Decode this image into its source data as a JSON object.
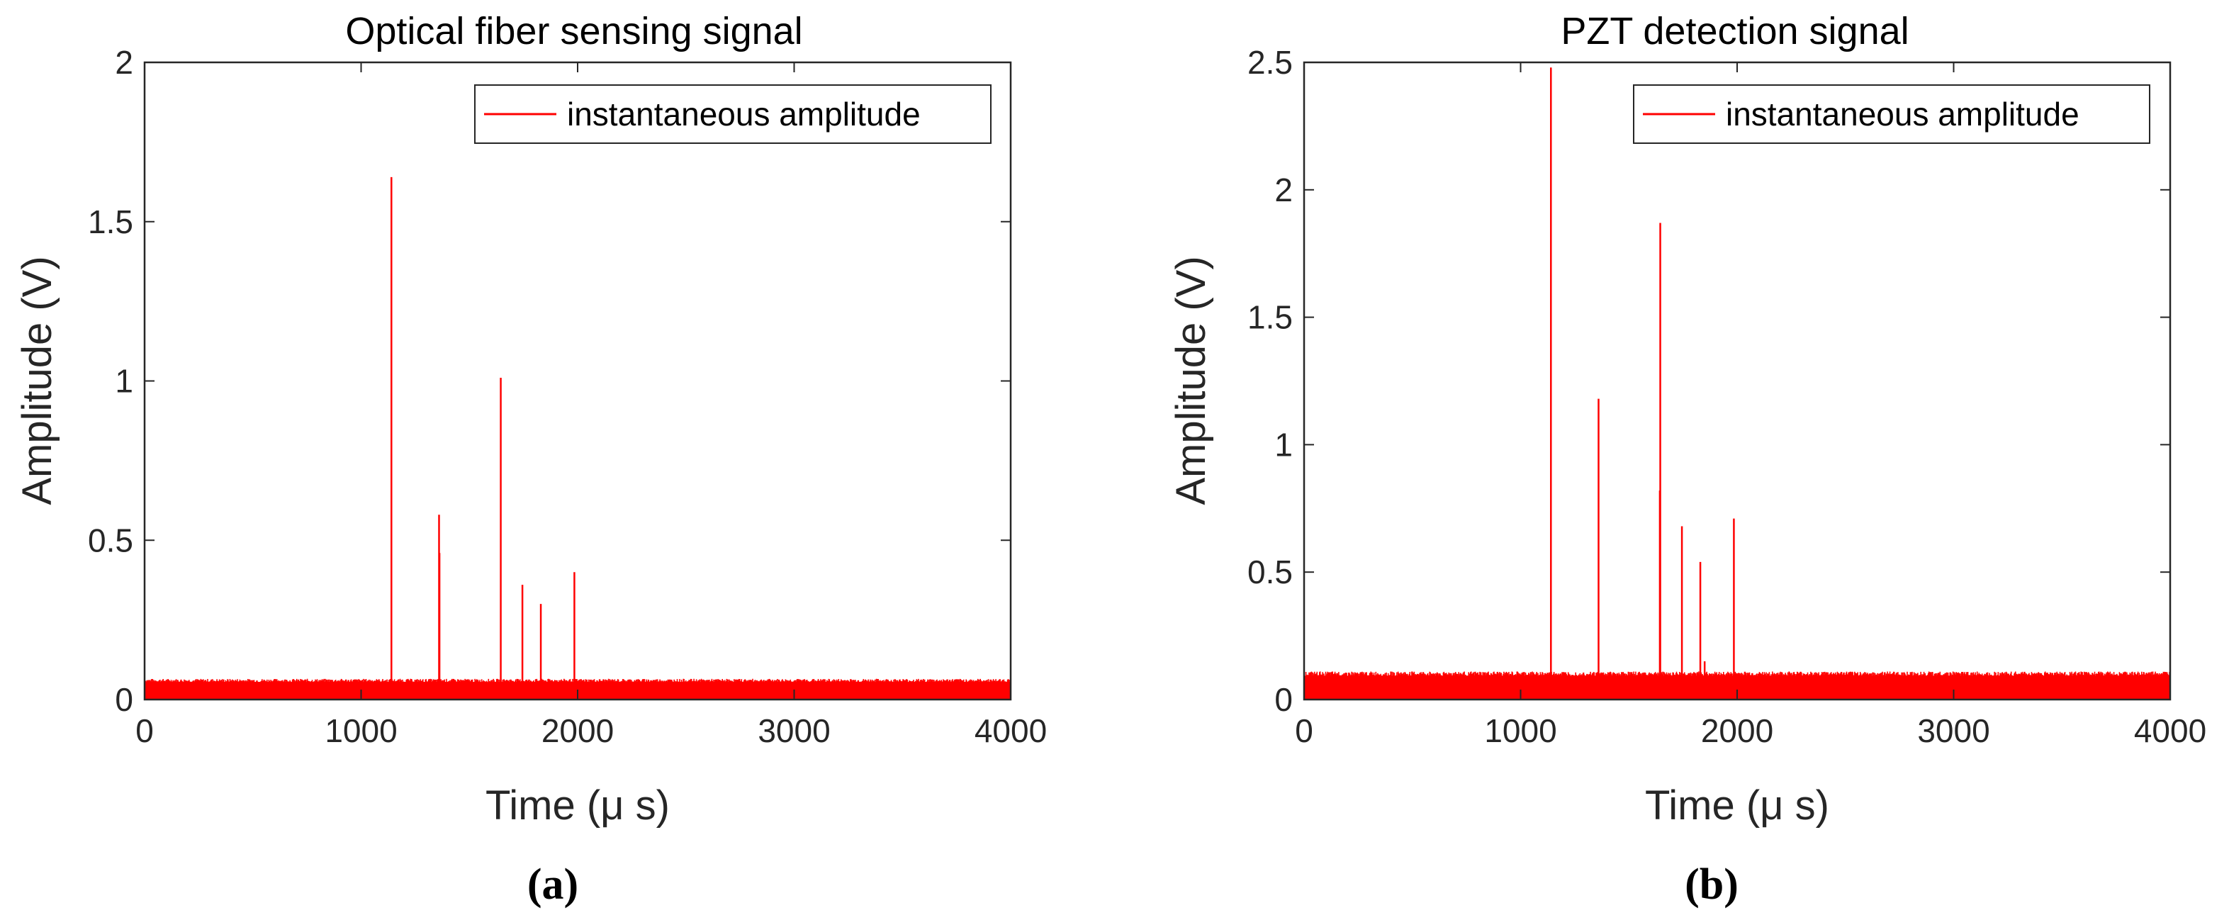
{
  "chart_data": [
    {
      "type": "line",
      "panel_label": "(a)",
      "title": "Optical fiber sensing signal",
      "xlabel": "Time (μ s)",
      "ylabel": "Amplitude (V)",
      "xlim": [
        0,
        4000
      ],
      "ylim": [
        0,
        2
      ],
      "xticks": [
        "0",
        "1000",
        "2000",
        "3000",
        "4000"
      ],
      "yticks": [
        "0",
        "0.5",
        "1",
        "1.5",
        "2"
      ],
      "ytick_values": [
        0,
        0.5,
        1,
        1.5,
        2
      ],
      "xtick_values": [
        0,
        1000,
        2000,
        3000,
        4000
      ],
      "grid": false,
      "legend_position": "top-right",
      "noise_floor": {
        "min": 0.01,
        "max": 0.065
      },
      "series": [
        {
          "name": "instantaneous amplitude",
          "color": "#ff0000",
          "peaks": [
            {
              "x": 1140,
              "y": 1.64
            },
            {
              "x": 1360,
              "y": 0.58
            },
            {
              "x": 1362,
              "y": 0.46
            },
            {
              "x": 1645,
              "y": 1.01
            },
            {
              "x": 1745,
              "y": 0.36
            },
            {
              "x": 1830,
              "y": 0.3
            },
            {
              "x": 1985,
              "y": 0.4
            }
          ]
        }
      ]
    },
    {
      "type": "line",
      "panel_label": "(b)",
      "title": "PZT detection signal",
      "xlabel": "Time (μ s)",
      "ylabel": "Amplitude (V)",
      "xlim": [
        0,
        4000
      ],
      "ylim": [
        0,
        2.5
      ],
      "xticks": [
        "0",
        "1000",
        "2000",
        "3000",
        "4000"
      ],
      "yticks": [
        "0",
        "0.5",
        "1",
        "1.5",
        "2",
        "2.5"
      ],
      "ytick_values": [
        0,
        0.5,
        1,
        1.5,
        2,
        2.5
      ],
      "xtick_values": [
        0,
        1000,
        2000,
        3000,
        4000
      ],
      "grid": false,
      "legend_position": "top-right",
      "noise_floor": {
        "min": 0.02,
        "max": 0.11
      },
      "series": [
        {
          "name": "instantaneous amplitude",
          "color": "#ff0000",
          "peaks": [
            {
              "x": 1140,
              "y": 2.48
            },
            {
              "x": 1360,
              "y": 1.18
            },
            {
              "x": 1645,
              "y": 1.87
            },
            {
              "x": 1643,
              "y": 0.82
            },
            {
              "x": 1745,
              "y": 0.68
            },
            {
              "x": 1830,
              "y": 0.54
            },
            {
              "x": 1850,
              "y": 0.15
            },
            {
              "x": 1985,
              "y": 0.71
            }
          ]
        }
      ]
    }
  ]
}
